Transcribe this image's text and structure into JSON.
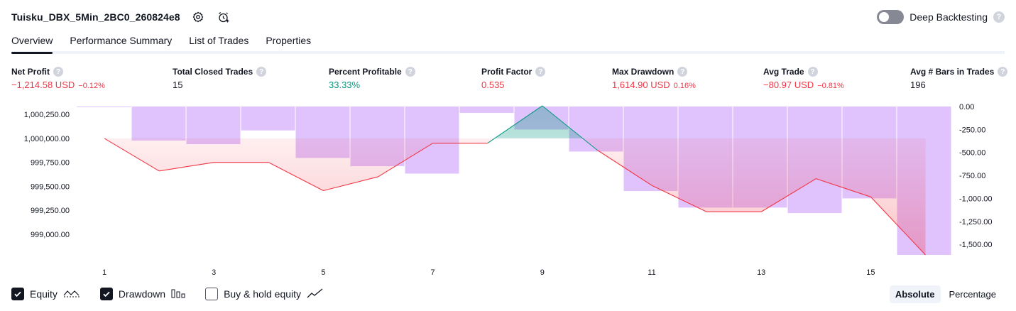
{
  "header": {
    "strategy_name": "Tuisku_DBX_5Min_2BC0_260824e8",
    "settings_icon": "gear-icon",
    "alert_icon": "alarm-clock-plus-icon"
  },
  "deep_backtesting": {
    "label": "Deep Backtesting",
    "enabled": false,
    "help": "?"
  },
  "tabs": [
    {
      "label": "Overview",
      "active": true
    },
    {
      "label": "Performance Summary",
      "active": false
    },
    {
      "label": "List of Trades",
      "active": false
    },
    {
      "label": "Properties",
      "active": false
    }
  ],
  "metrics": [
    {
      "label": "Net Profit",
      "value": "−1,214.58 USD",
      "pct": "−0.12%",
      "color": "red"
    },
    {
      "label": "Total Closed Trades",
      "value": "15",
      "pct": "",
      "color": "default"
    },
    {
      "label": "Percent Profitable",
      "value": "33.33%",
      "pct": "",
      "color": "green"
    },
    {
      "label": "Profit Factor",
      "value": "0.535",
      "pct": "",
      "color": "red"
    },
    {
      "label": "Max Drawdown",
      "value": "1,614.90 USD",
      "pct": "0.16%",
      "color": "red"
    },
    {
      "label": "Avg Trade",
      "value": "−80.97 USD",
      "pct": "−0.81%",
      "color": "red"
    },
    {
      "label": "Avg # Bars in Trades",
      "value": "196",
      "pct": "",
      "color": "default"
    }
  ],
  "chart_data": {
    "type": "line",
    "x": [
      1,
      2,
      3,
      4,
      5,
      6,
      7,
      8,
      9,
      10,
      11,
      12,
      13,
      14,
      15,
      16
    ],
    "x_tick_labels": [
      "1",
      "3",
      "5",
      "7",
      "9",
      "11",
      "13",
      "15"
    ],
    "series": [
      {
        "name": "Equity",
        "type": "line",
        "axis": "left",
        "values": [
          1000000.0,
          999660,
          999750,
          999750,
          999455,
          999600,
          999950,
          999950,
          1000340,
          999880,
          999510,
          999235,
          999235,
          999580,
          999390,
          998785
        ]
      },
      {
        "name": "Drawdown",
        "type": "bar",
        "axis": "right",
        "values": [
          0,
          -370,
          -410,
          -260,
          -560,
          -650,
          -730,
          -70,
          -250,
          -490,
          -920,
          -1100,
          -1100,
          -1160,
          -1000,
          -1614.9
        ]
      }
    ],
    "left_axis": {
      "ticks": [
        "1,000,250.00",
        "1,000,000.00",
        "999,750.00",
        "999,500.00",
        "999,250.00",
        "999,000.00"
      ],
      "ylim": [
        998785,
        1000340
      ]
    },
    "right_axis": {
      "ticks": [
        "0.00",
        "-250.00",
        "-500.00",
        "-750.00",
        "-1,000.00",
        "-1,250.00",
        "-1,500.00"
      ],
      "ylim": [
        -1614.9,
        0
      ]
    },
    "colors": {
      "equity_down": "#f23645",
      "equity_up": "#089981",
      "drawdown_bar": "#e0c3fc"
    },
    "grid": false
  },
  "legend": {
    "items": [
      {
        "label": "Equity",
        "checked": true,
        "icon": "equity-line-icon"
      },
      {
        "label": "Drawdown",
        "checked": true,
        "icon": "drawdown-bars-icon"
      },
      {
        "label": "Buy & hold equity",
        "checked": false,
        "icon": "buy-hold-line-icon"
      }
    ]
  },
  "mode": {
    "absolute": "Absolute",
    "percentage": "Percentage",
    "selected": "Absolute"
  }
}
